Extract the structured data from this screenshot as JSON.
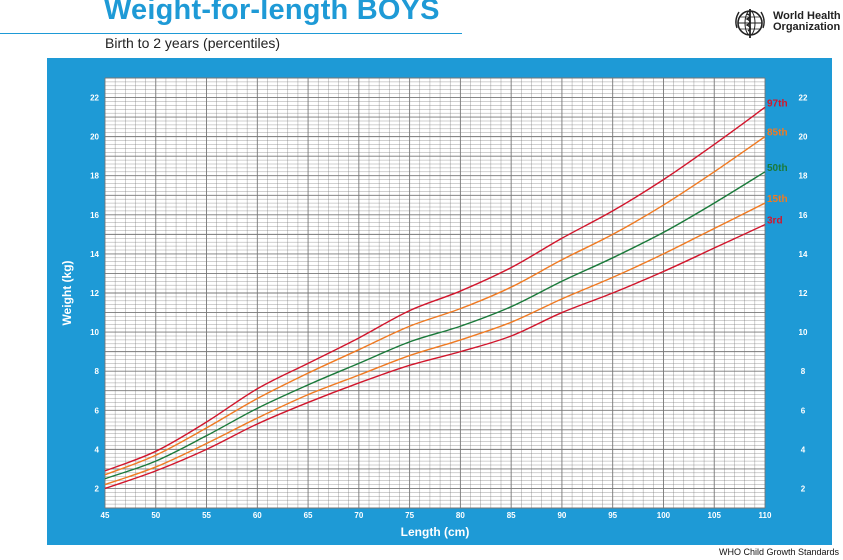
{
  "header": {
    "title": "Weight-for-length BOYS",
    "subtitle": "Birth to 2 years (percentiles)",
    "organization_line1": "World Health",
    "organization_line2": "Organization",
    "emblem_icon": "who-emblem-icon"
  },
  "footer": {
    "text": "WHO Child Growth Standards"
  },
  "colors": {
    "frame": "#1e9ad6",
    "grid": "#777777",
    "p3": "#d2162c",
    "p15": "#f07a22",
    "p50": "#1a7a3a",
    "p85": "#f07a22",
    "p97": "#d2162c"
  },
  "chart_data": {
    "type": "line",
    "title": "Weight-for-length BOYS",
    "subtitle": "Birth to 2 years (percentiles)",
    "xlabel": "Length (cm)",
    "ylabel": "Weight (kg)",
    "xlim": [
      45,
      110
    ],
    "ylim": [
      1,
      23
    ],
    "x_ticks": [
      45,
      50,
      55,
      60,
      65,
      70,
      75,
      80,
      85,
      90,
      95,
      100,
      105,
      110
    ],
    "y_ticks": [
      2,
      4,
      6,
      8,
      10,
      12,
      14,
      16,
      18,
      20,
      22
    ],
    "grid": true,
    "x": [
      45,
      50,
      55,
      60,
      65,
      70,
      75,
      80,
      85,
      90,
      95,
      100,
      105,
      110
    ],
    "series": [
      {
        "name": "3rd",
        "values": [
          2.0,
          2.9,
          4.0,
          5.3,
          6.4,
          7.4,
          8.3,
          9.0,
          9.8,
          11.0,
          12.0,
          13.1,
          14.3,
          15.5
        ]
      },
      {
        "name": "15th",
        "values": [
          2.2,
          3.1,
          4.3,
          5.6,
          6.8,
          7.8,
          8.8,
          9.6,
          10.5,
          11.7,
          12.8,
          14.0,
          15.3,
          16.6
        ]
      },
      {
        "name": "50th",
        "values": [
          2.5,
          3.4,
          4.7,
          6.1,
          7.3,
          8.4,
          9.5,
          10.3,
          11.3,
          12.6,
          13.8,
          15.1,
          16.6,
          18.2
        ]
      },
      {
        "name": "85th",
        "values": [
          2.7,
          3.7,
          5.1,
          6.6,
          7.9,
          9.1,
          10.3,
          11.2,
          12.3,
          13.7,
          15.0,
          16.5,
          18.2,
          20.0
        ]
      },
      {
        "name": "97th",
        "values": [
          2.9,
          3.9,
          5.4,
          7.1,
          8.4,
          9.7,
          11.1,
          12.1,
          13.3,
          14.8,
          16.2,
          17.8,
          19.6,
          21.5
        ]
      }
    ]
  }
}
